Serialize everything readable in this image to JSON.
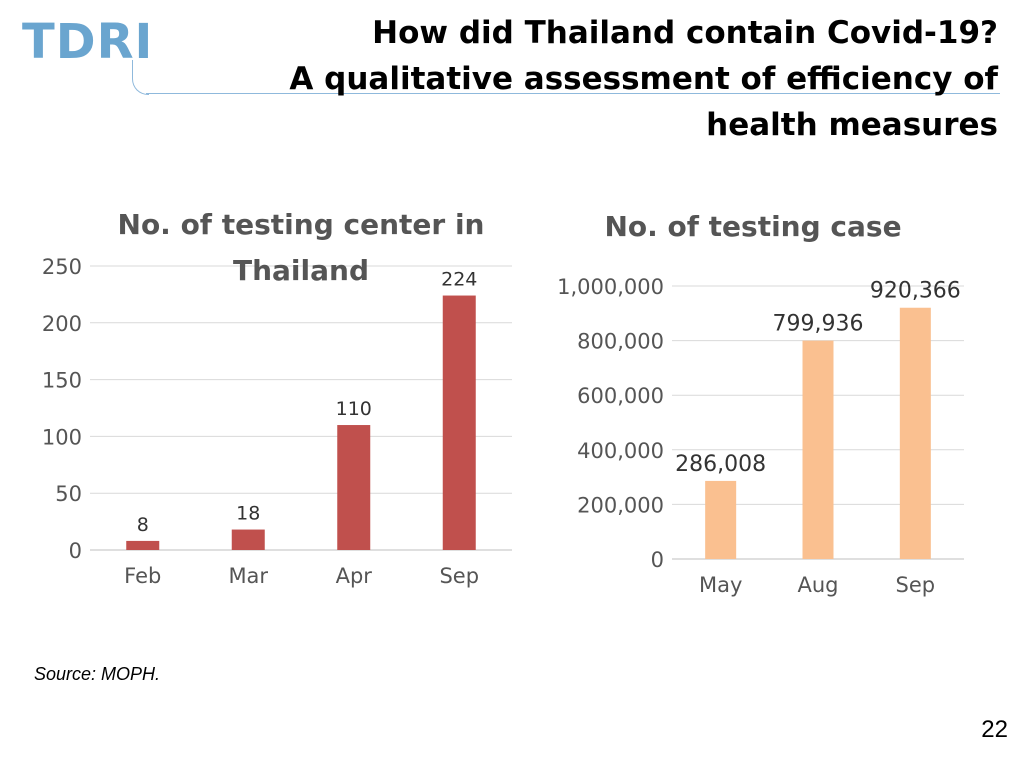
{
  "logo": {
    "text": "TDRI",
    "color": "#6aa5cf"
  },
  "header": {
    "title_lines": [
      "How did Thailand contain Covid-19?",
      "A qualitative assessment of efficiency of",
      "health measures"
    ]
  },
  "footer": {
    "source": "Source: MOPH.",
    "page_number": "22"
  },
  "chart_data": [
    {
      "type": "bar",
      "title_lines": [
        "No. of testing center in",
        "Thailand"
      ],
      "categories": [
        "Feb",
        "Mar",
        "Apr",
        "Sep"
      ],
      "values": [
        8,
        18,
        110,
        224
      ],
      "data_labels": [
        "8",
        "18",
        "110",
        "224"
      ],
      "ylim": [
        0,
        250
      ],
      "yticks": [
        0,
        50,
        100,
        150,
        200,
        250
      ],
      "ytick_labels": [
        "0",
        "50",
        "100",
        "150",
        "200",
        "250"
      ],
      "grid": true,
      "color": "#c0504d"
    },
    {
      "type": "bar",
      "title_lines": [
        "No. of testing case"
      ],
      "categories": [
        "May",
        "Aug",
        "Sep"
      ],
      "values": [
        286008,
        799936,
        920366
      ],
      "data_labels": [
        "286,008",
        "799,936",
        "920,366"
      ],
      "ylim": [
        0,
        1000000
      ],
      "yticks": [
        0,
        200000,
        400000,
        600000,
        800000,
        1000000
      ],
      "ytick_labels": [
        "0",
        "200,000",
        "400,000",
        "600,000",
        "800,000",
        "1,000,000"
      ],
      "grid": true,
      "color": "#fac090"
    }
  ]
}
